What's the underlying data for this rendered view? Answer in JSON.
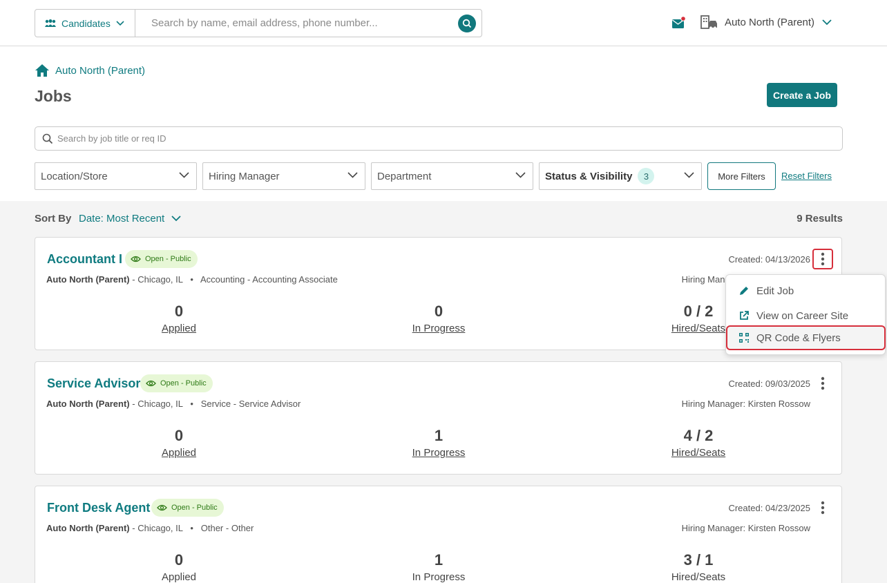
{
  "topbar": {
    "candidates_label": "Candidates",
    "search_placeholder": "Search by name, email address, phone number...",
    "org_name": "Auto North (Parent)"
  },
  "header": {
    "breadcrumb": "Auto North (Parent)",
    "title": "Jobs",
    "create_button": "Create a Job",
    "job_search_placeholder": "Search by job title or req ID"
  },
  "filters": {
    "location": "Location/Store",
    "hiring_manager": "Hiring Manager",
    "department": "Department",
    "status": "Status & Visibility",
    "status_count": "3",
    "more": "More Filters",
    "reset": "Reset Filters"
  },
  "sort": {
    "label": "Sort By",
    "value": "Date: Most Recent",
    "results": "9 Results"
  },
  "jobs": [
    {
      "title": "Accountant I",
      "status": "Open - Public",
      "org": "Auto North (Parent)",
      "location": "Chicago, IL",
      "department": "Accounting",
      "role": "Accounting Associate",
      "created": "Created: 04/13/2026",
      "hiring_manager": "Hiring Manager: Kirsten Rossow",
      "applied": "0",
      "in_progress": "0",
      "hired": "0 / 2"
    },
    {
      "title": "Service Advisor",
      "status": "Open - Public",
      "org": "Auto North (Parent)",
      "location": "Chicago, IL",
      "department": "Service",
      "role": "Service Advisor",
      "created": "Created: 09/03/2025",
      "hiring_manager": "Hiring Manager: Kirsten Rossow",
      "applied": "0",
      "in_progress": "1",
      "hired": "4 / 2"
    },
    {
      "title": "Front Desk Agent",
      "status": "Open - Public",
      "org": "Auto North (Parent)",
      "location": "Chicago, IL",
      "department": "Other",
      "role": "Other",
      "created": "Created: 04/23/2025",
      "hiring_manager": "Hiring Manager: Kirsten Rossow",
      "applied": "0",
      "in_progress": "1",
      "hired": "3 / 1"
    }
  ],
  "stat_labels": {
    "applied": "Applied",
    "in_progress": "In Progress",
    "hired": "Hired/Seats"
  },
  "separators": {
    "dash": "-",
    "dot": "•"
  },
  "menu": {
    "edit": "Edit Job",
    "view": "View on Career Site",
    "qr": "QR Code & Flyers"
  },
  "colors": {
    "brand_teal": "#11787d",
    "highlight_red": "#d62e3b",
    "status_green_bg": "#e7f7d6"
  }
}
